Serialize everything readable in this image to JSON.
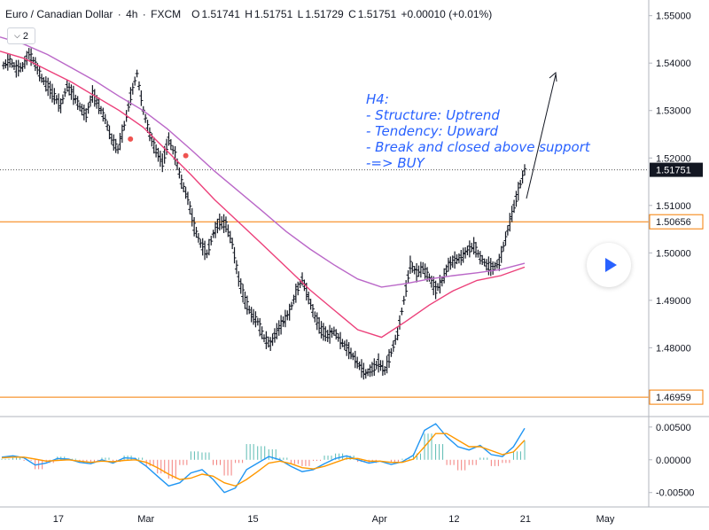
{
  "header": {
    "symbol": "Euro / Canadian Dollar",
    "sep1": "·",
    "timeframe": "4h",
    "sep2": "·",
    "exchange": "FXCM",
    "open_label": "O",
    "open": "1.51741",
    "high_label": "H",
    "high": "1.51751",
    "low_label": "L",
    "low": "1.51729",
    "close_label": "C",
    "close": "1.51751",
    "change": "+0.00010 (+0.01%)"
  },
  "collapse_button": {
    "icon": "chevron-down-icon",
    "count": "2"
  },
  "annotation": {
    "lines": [
      "H4:",
      "- Structure: Uptrend",
      "- Tendency: Upward",
      "- Break and closed above support",
      "-=> BUY"
    ],
    "color": "#2962ff"
  },
  "chart_data": [
    {
      "type": "line",
      "title": "",
      "price_axis": {
        "ticks": [
          "1.55000",
          "1.54000",
          "1.53000",
          "1.52000",
          "1.51000",
          "1.50000",
          "1.49000",
          "1.48000"
        ],
        "range": [
          1.4655,
          1.5533
        ]
      },
      "time_axis": {
        "ticks": [
          "17",
          "Mar",
          "15",
          "Apr",
          "12",
          "21",
          "May"
        ]
      },
      "horizontal_levels": [
        {
          "value": 1.50656,
          "label": "1.50656",
          "color": "#f57c00"
        },
        {
          "value": 1.46959,
          "label": "1.46959",
          "color": "#f57c00"
        }
      ],
      "last_price": {
        "value": 1.51751,
        "label": "1.51751",
        "color": "#131722"
      },
      "series": [
        {
          "kind": "price",
          "color": "#131722",
          "values": [
            1.5395,
            1.5405,
            1.5388,
            1.5392,
            1.542,
            1.5398,
            1.5368,
            1.535,
            1.533,
            1.531,
            1.5352,
            1.5332,
            1.5308,
            1.529,
            1.5335,
            1.531,
            1.5282,
            1.524,
            1.5218,
            1.5268,
            1.533,
            1.5378,
            1.53,
            1.525,
            1.5215,
            1.519,
            1.524,
            1.5205,
            1.515,
            1.5115,
            1.5055,
            1.502,
            1.4998,
            1.504,
            1.5065,
            1.506,
            1.502,
            1.4945,
            1.49,
            1.487,
            1.4855,
            1.482,
            1.4808,
            1.4835,
            1.4855,
            1.4875,
            1.4915,
            1.4945,
            1.4905,
            1.4865,
            1.4838,
            1.4825,
            1.4835,
            1.4815,
            1.48,
            1.4782,
            1.4762,
            1.4745,
            1.4755,
            1.4768,
            1.4752,
            1.479,
            1.483,
            1.49,
            1.4975,
            1.4958,
            1.4968,
            1.4948,
            1.4922,
            1.494,
            1.4975,
            1.4985,
            1.499,
            1.5005,
            1.5015,
            1.499,
            1.4975,
            1.4968,
            1.498,
            1.503,
            1.5082,
            1.513,
            1.5175
          ]
        },
        {
          "kind": "ema",
          "color": "#ec407a",
          "values": [
            1.5425,
            1.541,
            1.5385,
            1.536,
            1.533,
            1.53,
            1.5265,
            1.5215,
            1.5165,
            1.5112,
            1.5065,
            1.5018,
            1.497,
            1.4922,
            1.488,
            1.4838,
            1.4822,
            1.4855,
            1.489,
            1.492,
            1.4942,
            1.4952,
            1.497
          ]
        },
        {
          "kind": "ma",
          "color": "#ba68c8",
          "values": [
            1.5455,
            1.544,
            1.5418,
            1.539,
            1.5362,
            1.533,
            1.53,
            1.5262,
            1.5218,
            1.5172,
            1.513,
            1.5088,
            1.5045,
            1.5008,
            1.4975,
            1.4945,
            1.4928,
            1.4935,
            1.4945,
            1.4952,
            1.4958,
            1.4965,
            1.4978
          ]
        }
      ],
      "markers": [
        {
          "x": 0.184,
          "value": 1.524,
          "color": "#ef5350"
        },
        {
          "x": 0.262,
          "value": 1.5205,
          "color": "#ef5350"
        }
      ]
    },
    {
      "type": "bar",
      "title": "",
      "indicator": "MACD",
      "range": [
        -0.0072,
        0.0066
      ],
      "ticks": [
        "0.00500",
        "0.00000",
        "-0.00500"
      ],
      "macd_values": [
        0.0004,
        0.0006,
        0.0003,
        -0.0008,
        -0.0005,
        0.0002,
        0.0001,
        -0.0004,
        -0.0006,
        0.0,
        -0.0005,
        0.0003,
        0.0002,
        -0.001,
        -0.0025,
        -0.004,
        -0.0035,
        -0.002,
        -0.0015,
        -0.003,
        -0.005,
        -0.0043,
        -0.0015,
        -0.0005,
        0.0005,
        0.0,
        -0.001,
        -0.0018,
        -0.0015,
        -0.0006,
        0.0002,
        0.0006,
        0.0,
        -0.0005,
        -0.0002,
        -0.0007,
        -0.0003,
        0.0007,
        0.0045,
        0.0055,
        0.0035,
        0.002,
        0.0015,
        0.0022,
        0.0008,
        0.0005,
        0.002,
        0.0048
      ],
      "signal_values": [
        0.0003,
        0.0004,
        0.0004,
        0.0001,
        -0.0002,
        -0.0001,
        0.0,
        -0.0002,
        -0.0004,
        -0.0002,
        -0.0003,
        -0.0001,
        0.0,
        -0.0004,
        -0.0012,
        -0.0022,
        -0.003,
        -0.0028,
        -0.0022,
        -0.0025,
        -0.0035,
        -0.004,
        -0.003,
        -0.0018,
        -0.0005,
        -0.0002,
        -0.0006,
        -0.0012,
        -0.0014,
        -0.001,
        -0.0004,
        0.0002,
        0.0002,
        -0.0002,
        -0.0002,
        -0.0004,
        -0.0004,
        0.0001,
        0.002,
        0.004,
        0.004,
        0.003,
        0.002,
        0.002,
        0.0014,
        0.0008,
        0.0012,
        0.003
      ],
      "macd_color": "#2196f3",
      "signal_color": "#ff9800",
      "hist_up_color": "#26a69a",
      "hist_down_color": "#ef5350"
    }
  ]
}
